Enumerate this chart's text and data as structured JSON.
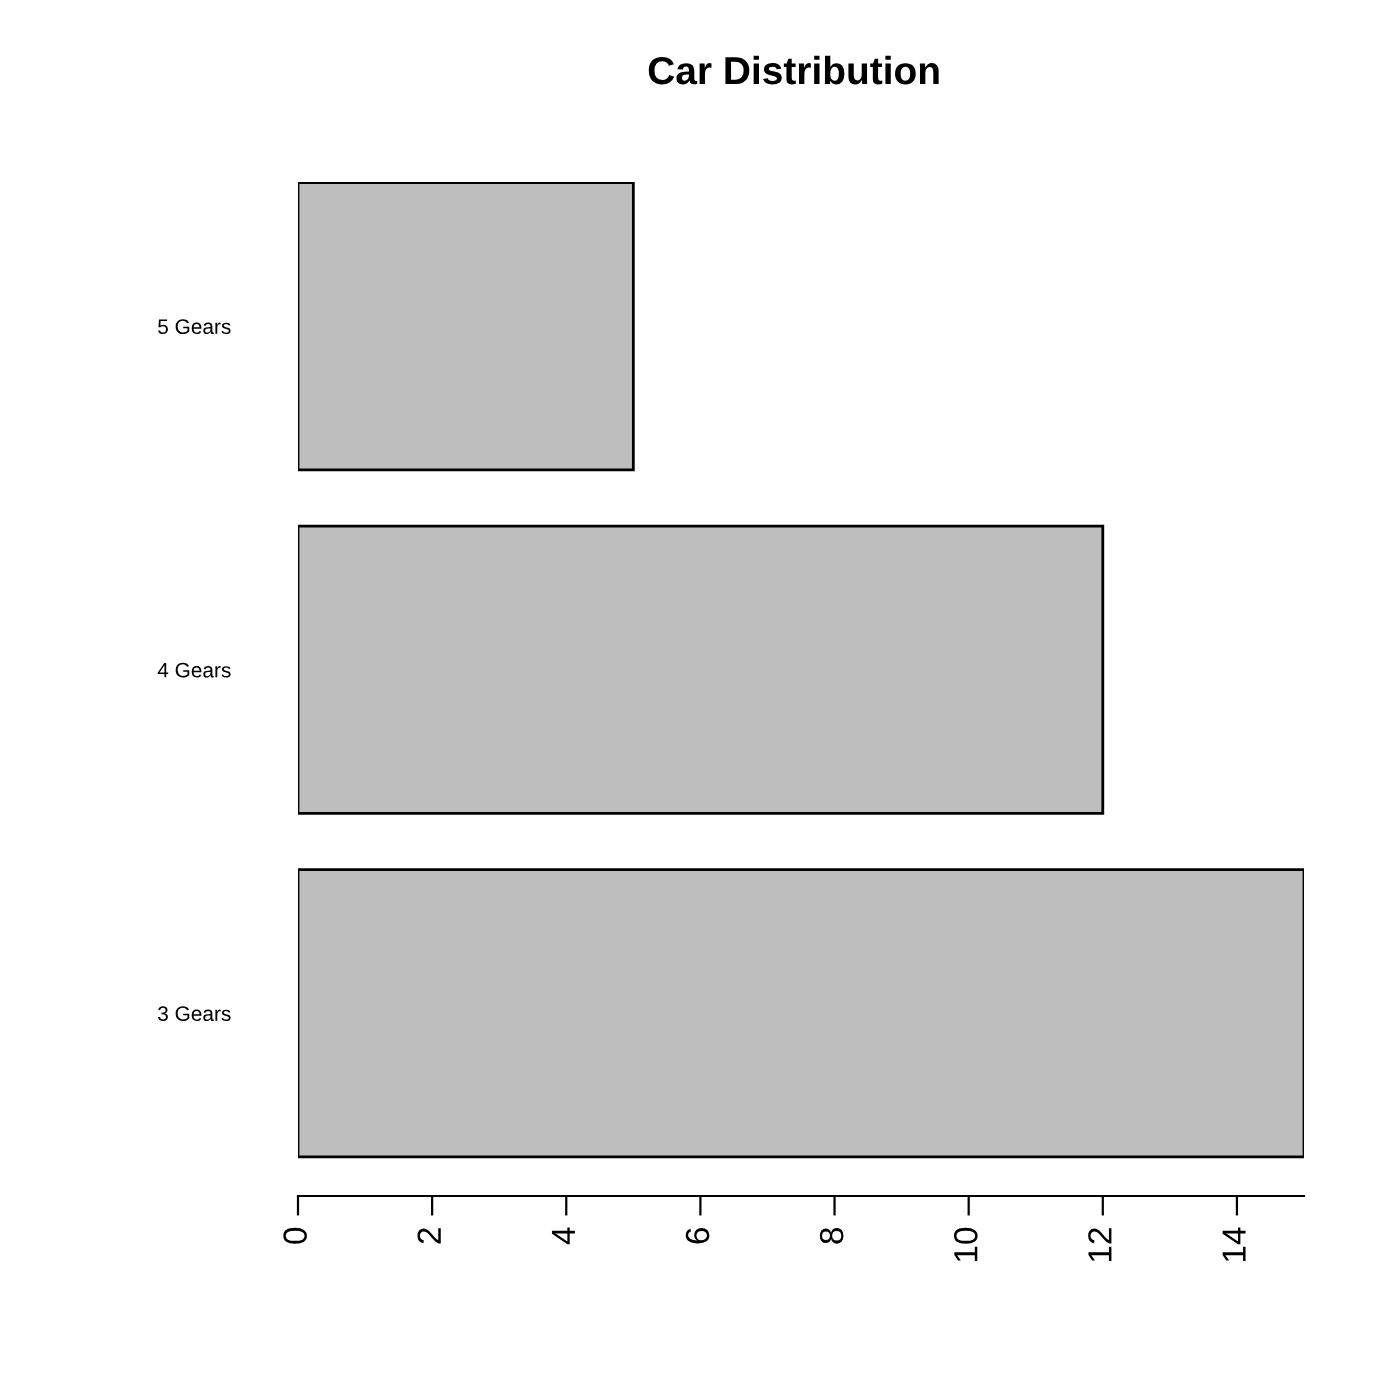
{
  "chart_data": {
    "type": "bar",
    "title": "Car Distribution",
    "orientation": "horizontal",
    "categories": [
      "5 Gears",
      "4 Gears",
      "3 Gears"
    ],
    "values": [
      5,
      12,
      15
    ],
    "color": "#bebebe",
    "xlim": [
      0,
      15
    ],
    "xticks": [
      0,
      2,
      4,
      6,
      8,
      10,
      12,
      14
    ],
    "grid": false,
    "legend": false
  }
}
